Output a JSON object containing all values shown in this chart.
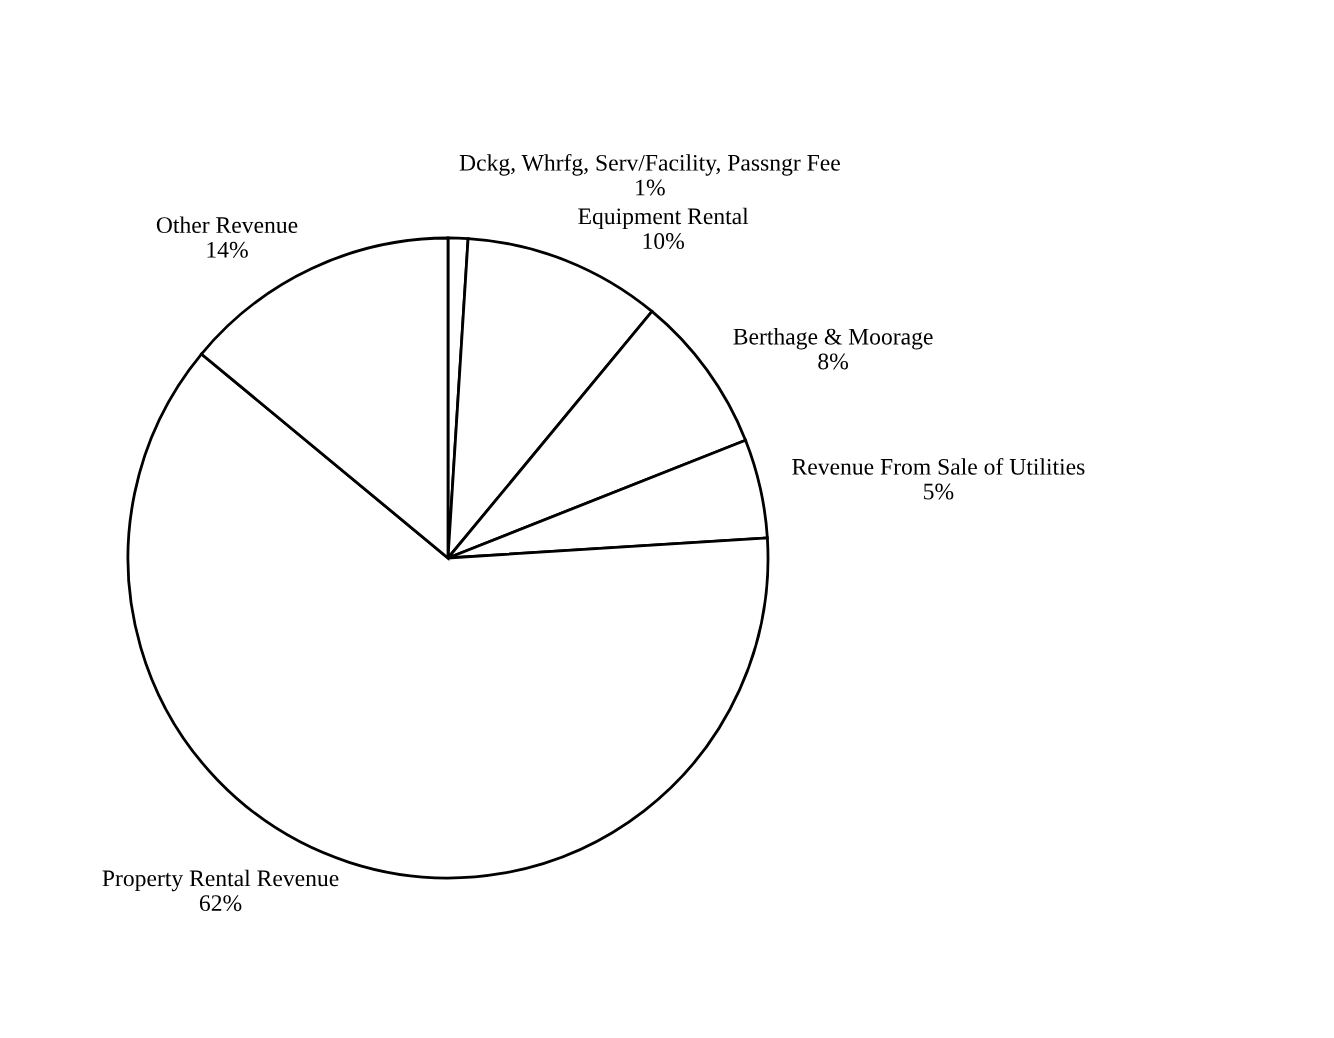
{
  "chart_data": {
    "type": "pie",
    "categories": [
      "Dckg, Whrfg, Serv/Facility, Passngr Fee",
      "Equipment Rental",
      "Berthage & Moorage",
      "Revenue From Sale of Utilities",
      "Property Rental Revenue",
      "Other Revenue"
    ],
    "values": [
      1,
      10,
      8,
      5,
      62,
      14
    ],
    "colors": [
      "#ffffff",
      "#ffffff",
      "#ffffff",
      "#ffffff",
      "#ffffff",
      "#ffffff"
    ],
    "value_labels": [
      "1%",
      "10%",
      "8%",
      "5%",
      "62%",
      "14%"
    ],
    "legend": false
  }
}
